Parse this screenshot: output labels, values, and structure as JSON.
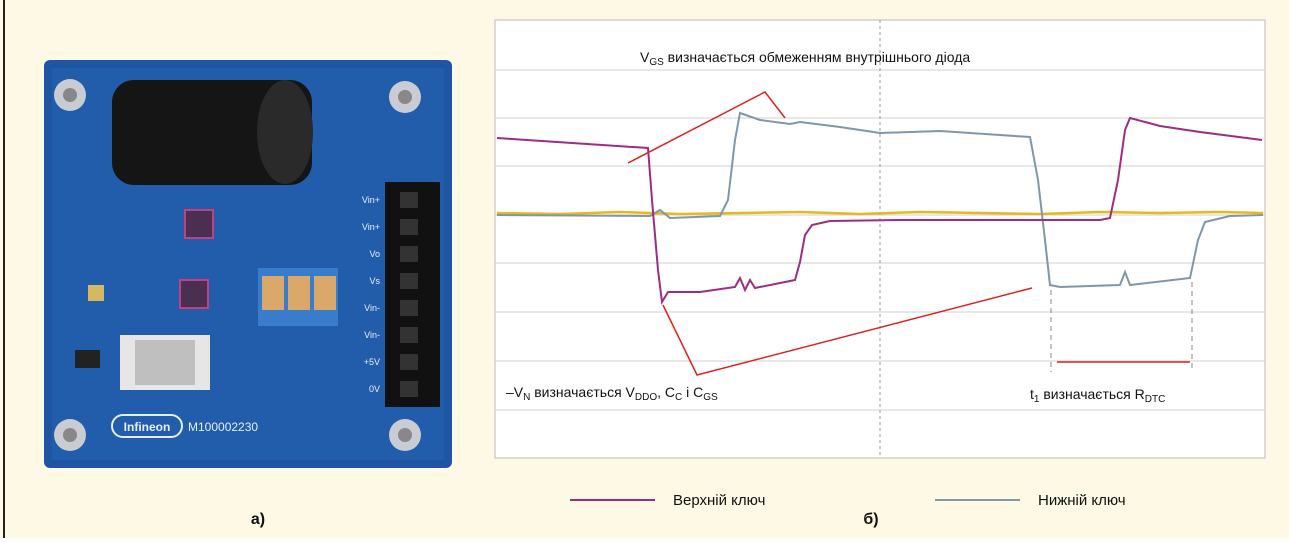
{
  "figure": {
    "board": {
      "logo": "Infineon",
      "part_number": "M100002230",
      "pins": [
        "Vin+",
        "Vin+",
        "Vo",
        "Vs",
        "Vin-",
        "Vin-",
        "+5V",
        "0V"
      ]
    },
    "label_a": "а)",
    "label_b": "б)",
    "annotations": [
      [
        {
          "text": "V"
        },
        {
          "text": "GS",
          "sub": true
        },
        {
          "text": " визначається обмеженням внутрішнього діода"
        }
      ],
      [
        {
          "text": "–V"
        },
        {
          "text": "N",
          "sub": true
        },
        {
          "text": " визначається V"
        },
        {
          "text": "DDO",
          "sub": true
        },
        {
          "text": ", C"
        },
        {
          "text": "C",
          "sub": true
        },
        {
          "text": " і C"
        },
        {
          "text": "GS",
          "sub": true
        }
      ],
      [
        {
          "text": "t"
        },
        {
          "text": "1",
          "sub": true
        },
        {
          "text": " визначається R"
        },
        {
          "text": "DTC",
          "sub": true
        }
      ]
    ],
    "legend": [
      {
        "name": "Верхній ключ",
        "color": "#9b2d83"
      },
      {
        "name": "Нижній ключ",
        "color": "#7f97a8"
      }
    ]
  }
}
